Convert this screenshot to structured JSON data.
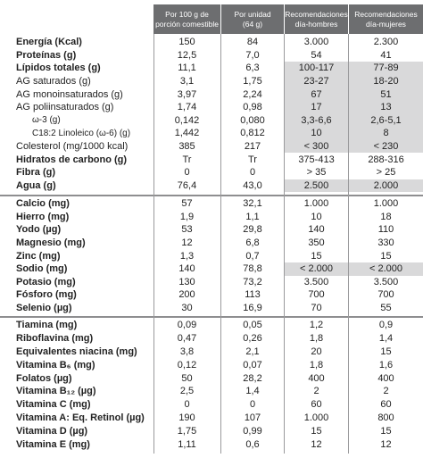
{
  "header": [
    [
      "Por 100 g de",
      "porción comestible"
    ],
    [
      "Por unidad",
      "(64 g)"
    ],
    [
      "Recomendaciones",
      "día-hombres"
    ],
    [
      "Recomendaciones",
      "día-mujeres"
    ]
  ],
  "sections": [
    [
      {
        "label": "Energía (Kcal)",
        "values": [
          "150",
          "84",
          "3.000",
          "2.300"
        ],
        "bold": true
      },
      {
        "label": "Proteínas (g)",
        "values": [
          "12,5",
          "7,0",
          "54",
          "41"
        ],
        "bold": true
      },
      {
        "label": "Lípidos totales (g)",
        "values": [
          "11,1",
          "6,3",
          "100-117",
          "77-89"
        ],
        "bold": true,
        "shaded": true
      },
      {
        "label": "AG saturados (g)",
        "values": [
          "3,1",
          "1,75",
          "23-27",
          "18-20"
        ],
        "shaded": true
      },
      {
        "label": "AG monoinsaturados (g)",
        "values": [
          "3,97",
          "2,24",
          "67",
          "51"
        ],
        "shaded": true
      },
      {
        "label": "AG poliinsaturados (g)",
        "values": [
          "1,74",
          "0,98",
          "17",
          "13"
        ],
        "shaded": true
      },
      {
        "label": "ω-3 (g)",
        "values": [
          "0,142",
          "0,080",
          "3,3-6,6",
          "2,6-5,1"
        ],
        "indent": true,
        "shaded": true
      },
      {
        "label": "C18:2 Linoleico (ω-6) (g)",
        "values": [
          "1,442",
          "0,812",
          "10",
          "8"
        ],
        "indent": true,
        "shaded": true
      },
      {
        "label": "Colesterol (mg/1000 kcal)",
        "values": [
          "385",
          "217",
          "< 300",
          "< 230"
        ],
        "shaded": true
      },
      {
        "label": "Hidratos de carbono (g)",
        "values": [
          "Tr",
          "Tr",
          "375-413",
          "288-316"
        ],
        "bold": true
      },
      {
        "label": "Fibra (g)",
        "values": [
          "0",
          "0",
          "> 35",
          "> 25"
        ],
        "bold": true
      },
      {
        "label": "Agua (g)",
        "values": [
          "76,4",
          "43,0",
          "2.500",
          "2.000"
        ],
        "bold": true,
        "shaded": true
      }
    ],
    [
      {
        "label": "Calcio (mg)",
        "values": [
          "57",
          "32,1",
          "1.000",
          "1.000"
        ],
        "bold": true
      },
      {
        "label": "Hierro (mg)",
        "values": [
          "1,9",
          "1,1",
          "10",
          "18"
        ],
        "bold": true
      },
      {
        "label": "Yodo (µg)",
        "values": [
          "53",
          "29,8",
          "140",
          "110"
        ],
        "bold": true
      },
      {
        "label": "Magnesio (mg)",
        "values": [
          "12",
          "6,8",
          "350",
          "330"
        ],
        "bold": true
      },
      {
        "label": "Zinc (mg)",
        "values": [
          "1,3",
          "0,7",
          "15",
          "15"
        ],
        "bold": true
      },
      {
        "label": "Sodio (mg)",
        "values": [
          "140",
          "78,8",
          "< 2.000",
          "< 2.000"
        ],
        "bold": true,
        "shaded": true
      },
      {
        "label": "Potasio (mg)",
        "values": [
          "130",
          "73,2",
          "3.500",
          "3.500"
        ],
        "bold": true
      },
      {
        "label": "Fósforo (mg)",
        "values": [
          "200",
          "113",
          "700",
          "700"
        ],
        "bold": true
      },
      {
        "label": "Selenio (µg)",
        "values": [
          "30",
          "16,9",
          "70",
          "55"
        ],
        "bold": true
      }
    ],
    [
      {
        "label": "Tiamina (mg)",
        "values": [
          "0,09",
          "0,05",
          "1,2",
          "0,9"
        ],
        "bold": true
      },
      {
        "label": "Riboflavina (mg)",
        "values": [
          "0,47",
          "0,26",
          "1,8",
          "1,4"
        ],
        "bold": true
      },
      {
        "label": "Equivalentes niacina (mg)",
        "values": [
          "3,8",
          "2,1",
          "20",
          "15"
        ],
        "bold": true
      },
      {
        "label": "Vitamina B₆ (mg)",
        "values": [
          "0,12",
          "0,07",
          "1,8",
          "1,6"
        ],
        "bold": true
      },
      {
        "label": "Folatos (µg)",
        "values": [
          "50",
          "28,2",
          "400",
          "400"
        ],
        "bold": true
      },
      {
        "label": "Vitamina B₁₂ (µg)",
        "values": [
          "2,5",
          "1,4",
          "2",
          "2"
        ],
        "bold": true
      },
      {
        "label": "Vitamina C (mg)",
        "values": [
          "0",
          "0",
          "60",
          "60"
        ],
        "bold": true
      },
      {
        "label": "Vitamina A: Eq. Retinol (µg)",
        "values": [
          "190",
          "107",
          "1.000",
          "800"
        ],
        "bold": true
      },
      {
        "label": "Vitamina D (µg)",
        "values": [
          "1,75",
          "0,99",
          "15",
          "15"
        ],
        "bold": true
      },
      {
        "label": "Vitamina E (mg)",
        "values": [
          "1,11",
          "0,6",
          "12",
          "12"
        ],
        "bold": true
      }
    ]
  ]
}
